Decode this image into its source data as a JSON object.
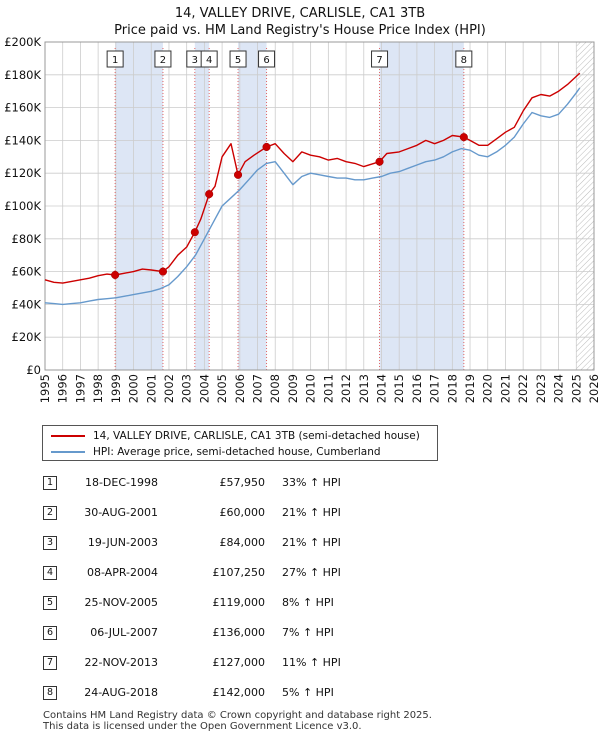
{
  "title": "14, VALLEY DRIVE, CARLISLE, CA1 3TB",
  "subtitle": "Price paid vs. HM Land Registry's House Price Index (HPI)",
  "colors": {
    "property": "#cc0000",
    "hpi": "#6699cc",
    "shade": "#dde6f5",
    "grid": "#cccccc"
  },
  "legend": {
    "property_label": "14, VALLEY DRIVE, CARLISLE, CA1 3TB (semi-detached house)",
    "hpi_label": "HPI: Average price, semi-detached house, Cumberland"
  },
  "chart_data": {
    "type": "line",
    "xlim": [
      1995,
      2026
    ],
    "ylim": [
      0,
      200000
    ],
    "x_ticks": [
      1995,
      1996,
      1997,
      1998,
      1999,
      2000,
      2001,
      2002,
      2003,
      2004,
      2005,
      2006,
      2007,
      2008,
      2009,
      2010,
      2011,
      2012,
      2013,
      2014,
      2015,
      2016,
      2017,
      2018,
      2019,
      2020,
      2021,
      2022,
      2023,
      2024,
      2025,
      2026
    ],
    "y_ticks": [
      0,
      20000,
      40000,
      60000,
      80000,
      100000,
      120000,
      140000,
      160000,
      180000,
      200000
    ],
    "y_tick_labels": [
      "£0",
      "£20K",
      "£40K",
      "£60K",
      "£80K",
      "£100K",
      "£120K",
      "£140K",
      "£160K",
      "£180K",
      "£200K"
    ],
    "projection_start": 2025.0,
    "shaded_periods": [
      [
        1998.96,
        2001.66
      ],
      [
        2003.46,
        2004.27
      ],
      [
        2005.9,
        2007.51
      ],
      [
        2013.89,
        2018.65
      ]
    ],
    "series": [
      {
        "name": "14, VALLEY DRIVE, CARLISLE, CA1 3TB (semi-detached house)",
        "x": [
          1995,
          1995.5,
          1996,
          1996.5,
          1997,
          1997.5,
          1998,
          1998.5,
          1998.96,
          1999.5,
          2000,
          2000.5,
          2001,
          2001.66,
          2002,
          2002.5,
          2003,
          2003.46,
          2003.8,
          2004.27,
          2004.6,
          2005,
          2005.5,
          2005.9,
          2006.3,
          2006.8,
          2007.51,
          2008,
          2008.5,
          2009,
          2009.5,
          2010,
          2010.5,
          2011,
          2011.5,
          2012,
          2012.5,
          2013,
          2013.89,
          2014.3,
          2015,
          2015.5,
          2016,
          2016.5,
          2017,
          2017.5,
          2018,
          2018.65,
          2019,
          2019.5,
          2020,
          2020.5,
          2021,
          2021.5,
          2022,
          2022.5,
          2023,
          2023.5,
          2024,
          2024.5,
          2025,
          2025.2
        ],
        "values": [
          55000,
          53500,
          53000,
          54000,
          55000,
          56000,
          57500,
          58500,
          57950,
          59000,
          60000,
          61500,
          61000,
          60000,
          63000,
          70000,
          75000,
          84000,
          92000,
          107250,
          112000,
          130000,
          138000,
          119000,
          127000,
          131000,
          136000,
          138000,
          132000,
          127000,
          133000,
          131000,
          130000,
          128000,
          129000,
          127000,
          126000,
          124000,
          127000,
          132000,
          133000,
          135000,
          137000,
          140000,
          138000,
          140000,
          143000,
          142000,
          140000,
          137000,
          137000,
          141000,
          145000,
          148000,
          158000,
          166000,
          168000,
          167000,
          170000,
          174000,
          179000,
          181000
        ]
      },
      {
        "name": "HPI: Average price, semi-detached house, Cumberland",
        "x": [
          1995,
          1995.5,
          1996,
          1996.5,
          1997,
          1997.5,
          1998,
          1998.5,
          1999,
          1999.5,
          2000,
          2000.5,
          2001,
          2001.5,
          2002,
          2002.5,
          2003,
          2003.5,
          2004,
          2004.5,
          2005,
          2005.5,
          2006,
          2006.5,
          2007,
          2007.5,
          2008,
          2008.5,
          2009,
          2009.5,
          2010,
          2010.5,
          2011,
          2011.5,
          2012,
          2012.5,
          2013,
          2013.5,
          2014,
          2014.5,
          2015,
          2015.5,
          2016,
          2016.5,
          2017,
          2017.5,
          2018,
          2018.5,
          2019,
          2019.5,
          2020,
          2020.5,
          2021,
          2021.5,
          2022,
          2022.5,
          2023,
          2023.5,
          2024,
          2024.5,
          2025,
          2025.2
        ],
        "values": [
          41000,
          40500,
          40000,
          40500,
          41000,
          42000,
          43000,
          43500,
          44000,
          45000,
          46000,
          47000,
          48000,
          49500,
          52000,
          57000,
          63000,
          70000,
          80000,
          90000,
          100000,
          105000,
          110000,
          116000,
          122000,
          126000,
          127000,
          120000,
          113000,
          118000,
          120000,
          119000,
          118000,
          117000,
          117000,
          116000,
          116000,
          117000,
          118000,
          120000,
          121000,
          123000,
          125000,
          127000,
          128000,
          130000,
          133000,
          135000,
          134000,
          131000,
          130000,
          133000,
          137000,
          142000,
          150000,
          157000,
          155000,
          154000,
          156000,
          162000,
          169000,
          172000
        ]
      }
    ],
    "sales": [
      {
        "num": "1",
        "date": "18-DEC-1998",
        "price": "£57,950",
        "hpi_change": "33% ↑ HPI",
        "x": 1998.96,
        "value": 57950
      },
      {
        "num": "2",
        "date": "30-AUG-2001",
        "price": "£60,000",
        "hpi_change": "21% ↑ HPI",
        "x": 2001.66,
        "value": 60000
      },
      {
        "num": "3",
        "date": "19-JUN-2003",
        "price": "£84,000",
        "hpi_change": "21% ↑ HPI",
        "x": 2003.46,
        "value": 84000
      },
      {
        "num": "4",
        "date": "08-APR-2004",
        "price": "£107,250",
        "hpi_change": "27% ↑ HPI",
        "x": 2004.27,
        "value": 107250
      },
      {
        "num": "5",
        "date": "25-NOV-2005",
        "price": "£119,000",
        "hpi_change": "8% ↑ HPI",
        "x": 2005.9,
        "value": 119000
      },
      {
        "num": "6",
        "date": "06-JUL-2007",
        "price": "£136,000",
        "hpi_change": "7% ↑ HPI",
        "x": 2007.51,
        "value": 136000
      },
      {
        "num": "7",
        "date": "22-NOV-2013",
        "price": "£127,000",
        "hpi_change": "11% ↑ HPI",
        "x": 2013.89,
        "value": 127000
      },
      {
        "num": "8",
        "date": "24-AUG-2018",
        "price": "£142,000",
        "hpi_change": "5% ↑ HPI",
        "x": 2018.65,
        "value": 142000
      }
    ]
  },
  "footer": {
    "line1": "Contains HM Land Registry data © Crown copyright and database right 2025.",
    "line2": "This data is licensed under the Open Government Licence v3.0."
  }
}
